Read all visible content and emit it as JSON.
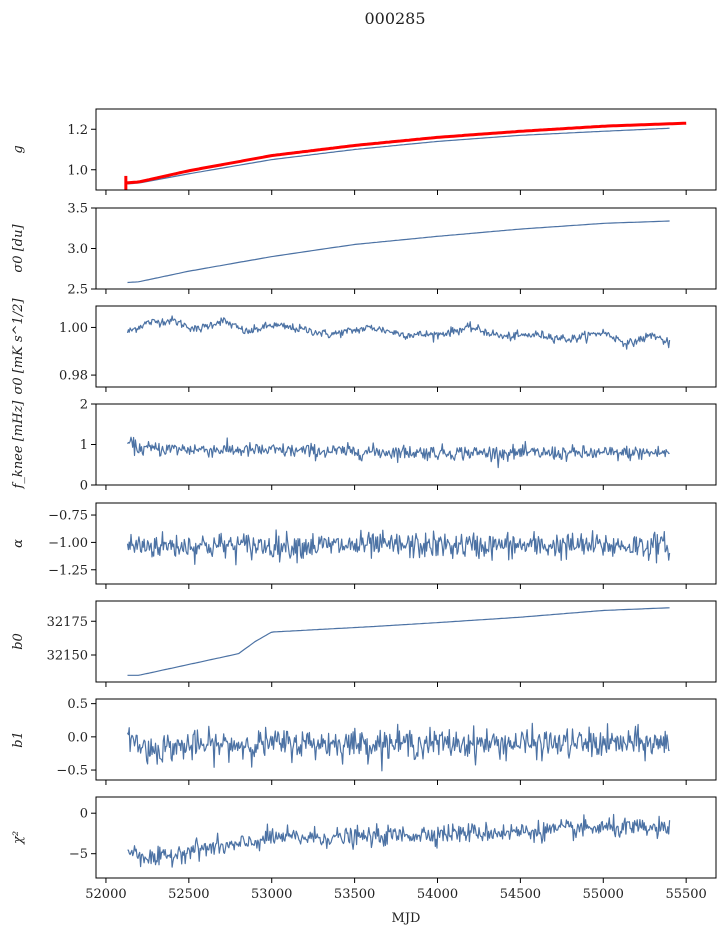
{
  "title": "000285",
  "chart_data": {
    "type": "line",
    "title": "000285",
    "xlabel": "MJD",
    "xlim": [
      51940,
      55680
    ],
    "x_ticks": [
      52000,
      52500,
      53000,
      53500,
      54000,
      54500,
      55000,
      55500
    ],
    "x_tick_labels": [
      "52000",
      "52500",
      "53000",
      "53500",
      "54000",
      "54500",
      "55000",
      "55500"
    ],
    "x_range_data": [
      52130,
      55400
    ],
    "series_color": "#4c72a4",
    "overlay_color": "#ff0000",
    "panels": [
      {
        "name": "g",
        "ylabel": "g",
        "ylim": [
          0.9,
          1.3
        ],
        "y_ticks": [
          1.0,
          1.2
        ],
        "y_tick_labels": [
          "1.0",
          "1.2"
        ],
        "series": [
          {
            "name": "g",
            "kind": "smooth",
            "points": [
              [
                52130,
                0.93
              ],
              [
                52200,
                0.935
              ],
              [
                52500,
                0.98
              ],
              [
                53000,
                1.05
              ],
              [
                53500,
                1.1
              ],
              [
                54000,
                1.14
              ],
              [
                54500,
                1.17
              ],
              [
                55000,
                1.19
              ],
              [
                55400,
                1.205
              ]
            ]
          },
          {
            "name": "g_fit",
            "kind": "smooth",
            "color": "red",
            "points": [
              [
                52120,
                0.935
              ],
              [
                52200,
                0.94
              ],
              [
                52500,
                0.995
              ],
              [
                53000,
                1.07
              ],
              [
                53500,
                1.12
              ],
              [
                54000,
                1.16
              ],
              [
                54500,
                1.19
              ],
              [
                55000,
                1.215
              ],
              [
                55500,
                1.23
              ]
            ]
          }
        ]
      },
      {
        "name": "sigma0_du",
        "ylabel": "σ0 [du]",
        "ylim": [
          2.5,
          3.5
        ],
        "y_ticks": [
          2.5,
          3.0,
          3.5
        ],
        "y_tick_labels": [
          "2.5",
          "3.0",
          "3.5"
        ],
        "series": [
          {
            "name": "sigma0",
            "kind": "smooth",
            "points": [
              [
                52130,
                2.58
              ],
              [
                52200,
                2.59
              ],
              [
                52500,
                2.72
              ],
              [
                53000,
                2.9
              ],
              [
                53500,
                3.05
              ],
              [
                54000,
                3.15
              ],
              [
                54500,
                3.24
              ],
              [
                55000,
                3.31
              ],
              [
                55400,
                3.34
              ]
            ]
          }
        ]
      },
      {
        "name": "sigma0_mK",
        "ylabel": "σ0 [mK s^1/2]",
        "ylim": [
          0.975,
          1.009
        ],
        "y_ticks": [
          0.98,
          1.0
        ],
        "y_tick_labels": [
          "0.98",
          "1.00"
        ],
        "series": [
          {
            "name": "sigma0_mK",
            "kind": "noisy",
            "noise": 0.0009,
            "points": [
              [
                52130,
                0.998
              ],
              [
                52250,
                1.002
              ],
              [
                52400,
                1.003
              ],
              [
                52550,
                0.999
              ],
              [
                52700,
                1.003
              ],
              [
                52850,
                0.998
              ],
              [
                53000,
                1.001
              ],
              [
                53200,
                0.999
              ],
              [
                53350,
                0.997
              ],
              [
                53600,
                1.0
              ],
              [
                53800,
                0.997
              ],
              [
                54000,
                0.997
              ],
              [
                54200,
                1.0
              ],
              [
                54400,
                0.996
              ],
              [
                54600,
                0.997
              ],
              [
                54800,
                0.995
              ],
              [
                55000,
                0.998
              ],
              [
                55150,
                0.993
              ],
              [
                55300,
                0.997
              ],
              [
                55400,
                0.993
              ]
            ]
          }
        ]
      },
      {
        "name": "fknee",
        "ylabel": "f_knee [mHz]",
        "ylim": [
          0,
          2
        ],
        "y_ticks": [
          0,
          1,
          2
        ],
        "y_tick_labels": [
          "0",
          "1",
          "2"
        ],
        "series": [
          {
            "name": "fknee",
            "kind": "noisy",
            "noise": 0.09,
            "points": [
              [
                52130,
                1.05
              ],
              [
                52200,
                0.9
              ],
              [
                53000,
                0.85
              ],
              [
                54000,
                0.8
              ],
              [
                55000,
                0.78
              ],
              [
                55400,
                0.8
              ]
            ]
          }
        ]
      },
      {
        "name": "alpha",
        "ylabel": "α",
        "ylim": [
          -1.38,
          -0.64
        ],
        "y_ticks": [
          -1.25,
          -1.0,
          -0.75
        ],
        "y_tick_labels": [
          "−1.25",
          "−1.00",
          "−0.75"
        ],
        "series": [
          {
            "name": "alpha",
            "kind": "noisy",
            "noise": 0.06,
            "points": [
              [
                52130,
                -1.03
              ],
              [
                55400,
                -1.03
              ]
            ]
          }
        ]
      },
      {
        "name": "b0",
        "ylabel": "b0",
        "ylim": [
          32130,
          32190
        ],
        "y_ticks": [
          32150,
          32175
        ],
        "y_tick_labels": [
          "32150",
          "32175"
        ],
        "series": [
          {
            "name": "b0",
            "kind": "smooth",
            "points": [
              [
                52130,
                32135
              ],
              [
                52200,
                32135
              ],
              [
                52500,
                32143
              ],
              [
                52800,
                32151
              ],
              [
                52900,
                32160
              ],
              [
                53000,
                32167
              ],
              [
                53300,
                32169
              ],
              [
                53600,
                32171
              ],
              [
                54000,
                32174
              ],
              [
                54500,
                32178
              ],
              [
                55000,
                32183
              ],
              [
                55400,
                32185
              ]
            ]
          }
        ]
      },
      {
        "name": "b1",
        "ylabel": "b1",
        "ylim": [
          -0.65,
          0.57
        ],
        "y_ticks": [
          -0.5,
          0.0,
          0.5
        ],
        "y_tick_labels": [
          "−0.5",
          "0.0",
          "0.5"
        ],
        "series": [
          {
            "name": "b1",
            "kind": "noisy",
            "noise": 0.11,
            "points": [
              [
                52130,
                0.0
              ],
              [
                52250,
                -0.2
              ],
              [
                52400,
                -0.15
              ],
              [
                53000,
                -0.1
              ],
              [
                54000,
                -0.1
              ],
              [
                55400,
                -0.1
              ]
            ]
          }
        ]
      },
      {
        "name": "chi2",
        "ylabel": "χ²",
        "ylim": [
          -8,
          2
        ],
        "y_ticks": [
          -5,
          0
        ],
        "y_tick_labels": [
          "−5",
          "0"
        ],
        "series": [
          {
            "name": "chi2",
            "kind": "noisy",
            "noise": 0.6,
            "points": [
              [
                52130,
                -4.5
              ],
              [
                52300,
                -5.8
              ],
              [
                52500,
                -4.5
              ],
              [
                52800,
                -4.0
              ],
              [
                53000,
                -3.0
              ],
              [
                53500,
                -3.0
              ],
              [
                54000,
                -2.5
              ],
              [
                54500,
                -2.3
              ],
              [
                55000,
                -1.8
              ],
              [
                55400,
                -2.0
              ]
            ]
          }
        ]
      }
    ]
  }
}
